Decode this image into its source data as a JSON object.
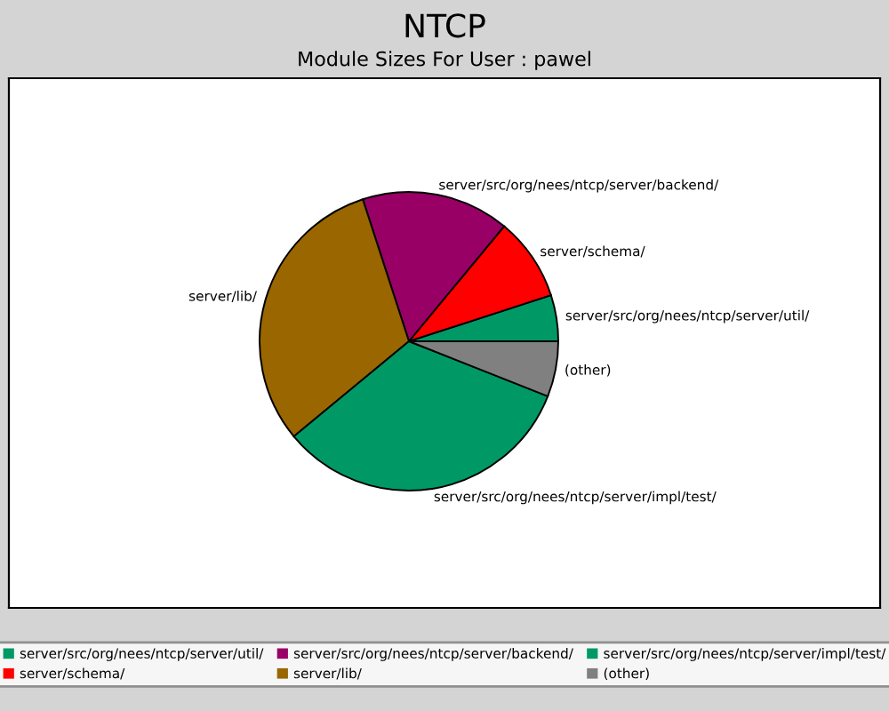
{
  "chart_data": {
    "type": "pie",
    "title": "NTCP",
    "subtitle": "Module Sizes For User : pawel",
    "categories": [
      "server/src/org/nees/ntcp/server/util/",
      "server/schema/",
      "server/src/org/nees/ntcp/server/backend/",
      "server/lib/",
      "server/src/org/nees/ntcp/server/impl/test/",
      "(other)"
    ],
    "values": [
      5,
      9,
      16,
      31,
      33,
      6
    ],
    "colors": [
      "#009966",
      "#ff0000",
      "#990066",
      "#996600",
      "#009966",
      "#808080"
    ],
    "legend": "bottom"
  }
}
